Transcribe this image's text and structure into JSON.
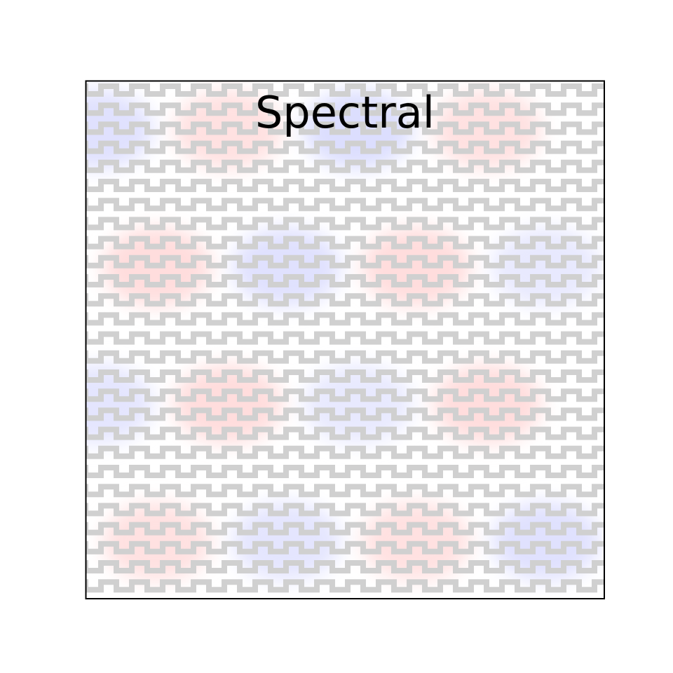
{
  "chart_data": {
    "type": "heatmap",
    "title": "Spectral",
    "xlabel": "",
    "ylabel": "",
    "grid": false,
    "legend": "none",
    "colormap": {
      "negative": "#d8dafe",
      "zero": "#ffffff",
      "positive": "#ffd4d4"
    },
    "hatch_color": "#d0d0d0",
    "band_rows": [
      {
        "row": 1,
        "cells": [
          -0.8,
          0.7,
          -0.9,
          0.7
        ]
      },
      {
        "row": 2,
        "cells": [
          0.8,
          -0.8,
          0.8,
          -0.6
        ]
      },
      {
        "row": 3,
        "cells": [
          -0.7,
          0.8,
          -0.6,
          0.8
        ]
      },
      {
        "row": 4,
        "cells": [
          0.7,
          -0.7,
          0.7,
          -0.8
        ]
      }
    ]
  }
}
